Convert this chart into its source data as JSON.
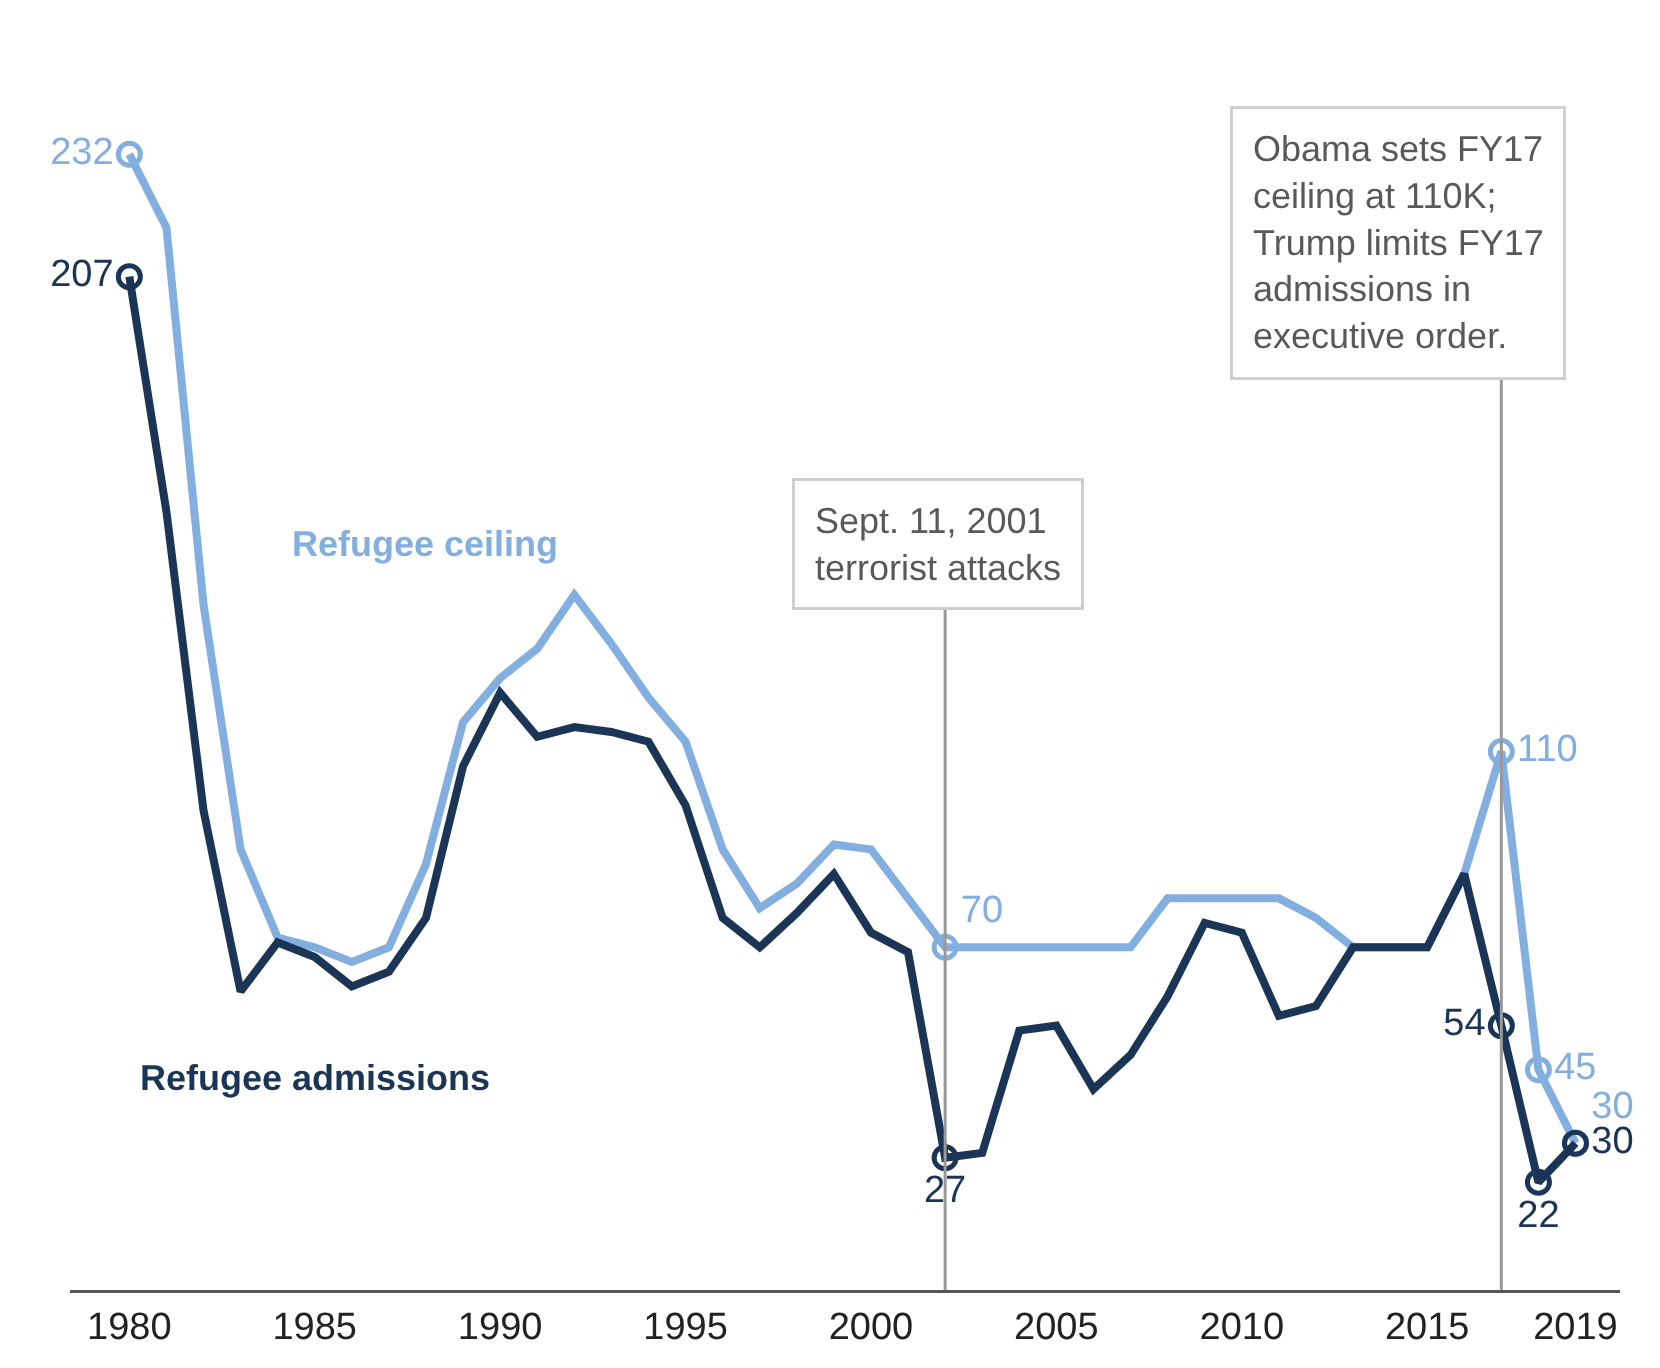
{
  "chart_data": {
    "type": "line",
    "x": [
      1980,
      1981,
      1982,
      1983,
      1984,
      1985,
      1986,
      1987,
      1988,
      1989,
      1990,
      1991,
      1992,
      1993,
      1994,
      1995,
      1996,
      1997,
      1998,
      1999,
      2000,
      2001,
      2002,
      2003,
      2004,
      2005,
      2006,
      2007,
      2008,
      2009,
      2010,
      2011,
      2012,
      2013,
      2014,
      2015,
      2016,
      2017,
      2018,
      2019
    ],
    "series": [
      {
        "name": "Refugee ceiling",
        "color": "#83aee0",
        "values": [
          232,
          217,
          140,
          90,
          72,
          70,
          67,
          70,
          87,
          116,
          125,
          131,
          142,
          132,
          121,
          112,
          90,
          78,
          83,
          91,
          90,
          80,
          70,
          70,
          70,
          70,
          70,
          70,
          80,
          80,
          80,
          80,
          76,
          70,
          70,
          70,
          85,
          110,
          45,
          30
        ],
        "value_labels": [
          "232",
          null,
          null,
          null,
          null,
          null,
          null,
          null,
          null,
          null,
          null,
          null,
          null,
          null,
          null,
          null,
          null,
          null,
          null,
          null,
          null,
          null,
          "70",
          null,
          null,
          null,
          null,
          null,
          null,
          null,
          null,
          null,
          null,
          null,
          null,
          null,
          null,
          "110",
          "45",
          "30"
        ]
      },
      {
        "name": "Refugee admissions",
        "color": "#1b3557",
        "values": [
          207,
          159,
          98,
          61,
          71,
          68,
          62,
          65,
          76,
          107,
          122,
          113,
          115,
          114,
          112,
          99,
          76,
          70,
          77,
          85,
          73,
          69,
          27,
          28,
          53,
          54,
          41,
          48,
          60,
          75,
          73,
          56,
          58,
          70,
          70,
          70,
          85,
          54,
          22,
          30
        ],
        "value_labels": [
          "207",
          null,
          null,
          null,
          null,
          null,
          null,
          null,
          null,
          null,
          null,
          null,
          null,
          null,
          null,
          null,
          null,
          null,
          null,
          null,
          null,
          null,
          "27",
          null,
          null,
          null,
          null,
          null,
          null,
          null,
          null,
          null,
          null,
          null,
          null,
          null,
          null,
          "54",
          "22",
          "30"
        ]
      }
    ],
    "xlim": [
      1978.4,
      2020.2
    ],
    "xticks": [
      1980,
      1985,
      1990,
      1995,
      2000,
      2005,
      2010,
      2015,
      2019
    ],
    "tick_labels": "x",
    "grid": false,
    "legend": false,
    "line_style": "solid",
    "ref_lines": [
      {
        "axis": "x",
        "value": 2002,
        "label": "Sept. 11, 2001\nterrorist attacks",
        "color": "#999999"
      },
      {
        "axis": "x",
        "value": 2017,
        "label": "Obama sets FY17\nceiling at 110K;\nTrump limits FY17\nadmissions in\nexecutive order.",
        "color": "#999999"
      }
    ]
  }
}
